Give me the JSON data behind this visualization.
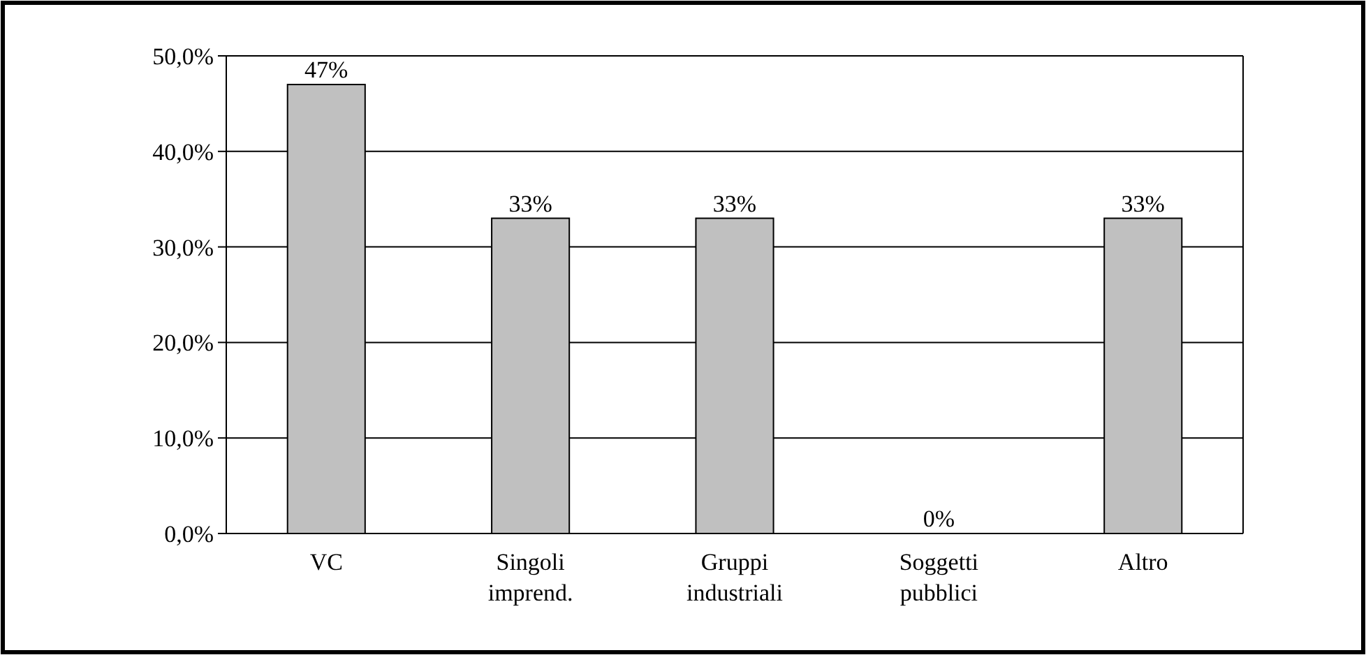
{
  "chart_data": {
    "type": "bar",
    "categories": [
      "VC",
      "Singoli imprend.",
      "Gruppi industriali",
      "Soggetti pubblici",
      "Altro"
    ],
    "values": [
      47,
      33,
      33,
      0,
      33
    ],
    "value_labels": [
      "47%",
      "33%",
      "33%",
      "0%",
      "33%"
    ],
    "color": "#c0c0c0",
    "ylim": [
      0,
      50
    ],
    "yticks": [
      {
        "value": 0,
        "label": "0,0%"
      },
      {
        "value": 10,
        "label": "10,0%"
      },
      {
        "value": 20,
        "label": "20,0%"
      },
      {
        "value": 30,
        "label": "30,0%"
      },
      {
        "value": 40,
        "label": "40,0%"
      },
      {
        "value": 50,
        "label": "50,0%"
      }
    ],
    "grid": "y"
  }
}
